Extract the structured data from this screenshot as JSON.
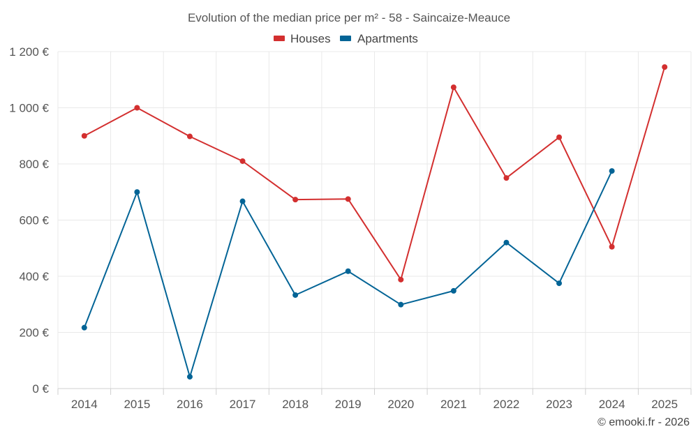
{
  "chart_data": {
    "type": "line",
    "title": "Evolution of the median price per m² - 58 - Saincaize-Meauce",
    "xlabel": "",
    "ylabel": "",
    "categories": [
      "2014",
      "2015",
      "2016",
      "2017",
      "2018",
      "2019",
      "2020",
      "2021",
      "2022",
      "2023",
      "2024",
      "2025"
    ],
    "ylim": [
      0,
      1200
    ],
    "yticks": [
      0,
      200,
      400,
      600,
      800,
      1000,
      1200
    ],
    "ytick_labels": [
      "0 €",
      "200 €",
      "400 €",
      "600 €",
      "800 €",
      "1 000 €",
      "1 200 €"
    ],
    "grid": true,
    "legend_position": "top-center",
    "series": [
      {
        "name": "Houses",
        "color": "#d32f2f",
        "values": [
          900,
          1000,
          898,
          810,
          673,
          675,
          388,
          1073,
          750,
          895,
          505,
          1145
        ]
      },
      {
        "name": "Apartments",
        "color": "#036496",
        "values": [
          217,
          700,
          42,
          667,
          333,
          418,
          299,
          348,
          520,
          375,
          775,
          null
        ]
      }
    ]
  },
  "credit": "© emooki.fr - 2026"
}
